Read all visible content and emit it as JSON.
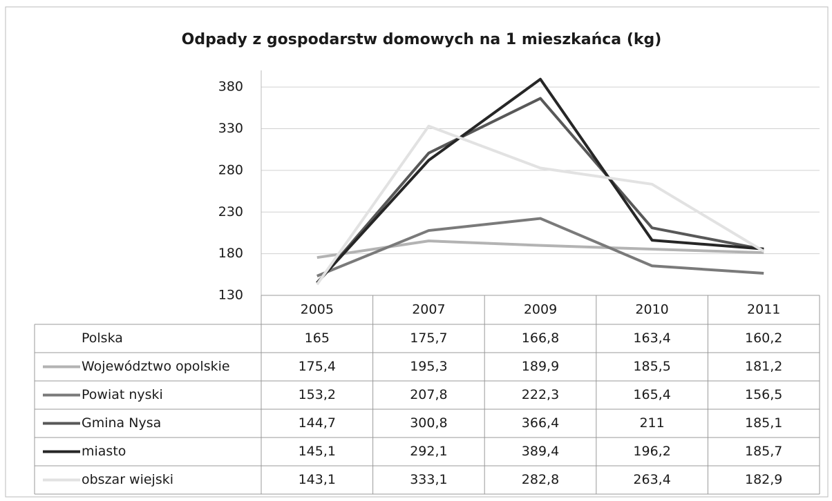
{
  "chart_data": {
    "type": "line",
    "title": "Odpady z gospodarstw domowych na 1 mieszkańca (kg)",
    "categories": [
      "2005",
      "2007",
      "2009",
      "2010",
      "2011"
    ],
    "ylim": [
      130,
      400
    ],
    "yticks": [
      130,
      180,
      230,
      280,
      330,
      380
    ],
    "grid": true,
    "series": [
      {
        "name": "Polska",
        "color": "#ffffff",
        "values": [
          165,
          175.7,
          166.8,
          163.4,
          160.2
        ],
        "value_labels": [
          "165",
          "175,7",
          "166,8",
          "163,4",
          "160,2"
        ]
      },
      {
        "name": "Województwo opolskie",
        "color": "#b3b3b3",
        "values": [
          175.4,
          195.3,
          189.9,
          185.5,
          181.2
        ],
        "value_labels": [
          "175,4",
          "195,3",
          "189,9",
          "185,5",
          "181,2"
        ]
      },
      {
        "name": "Powiat nyski",
        "color": "#7a7a7a",
        "values": [
          153.2,
          207.8,
          222.3,
          165.4,
          156.5
        ],
        "value_labels": [
          "153,2",
          "207,8",
          "222,3",
          "165,4",
          "156,5"
        ]
      },
      {
        "name": "Gmina Nysa",
        "color": "#585858",
        "values": [
          144.7,
          300.8,
          366.4,
          211,
          185.1
        ],
        "value_labels": [
          "144,7",
          "300,8",
          "366,4",
          "211",
          "185,1"
        ]
      },
      {
        "name": "miasto",
        "color": "#262626",
        "values": [
          145.1,
          292.1,
          389.4,
          196.2,
          185.7
        ],
        "value_labels": [
          "145,1",
          "292,1",
          "389,4",
          "196,2",
          "185,7"
        ]
      },
      {
        "name": "obszar wiejski",
        "color": "#e2e2e2",
        "values": [
          143.1,
          333.1,
          282.8,
          263.4,
          182.9
        ],
        "value_labels": [
          "143,1",
          "333,1",
          "282,8",
          "263,4",
          "182,9"
        ]
      }
    ]
  }
}
